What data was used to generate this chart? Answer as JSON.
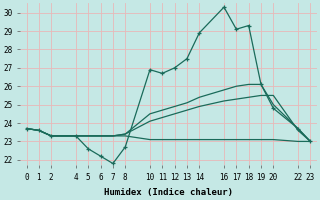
{
  "xlabel": "Humidex (Indice chaleur)",
  "bg_color": "#c5e8e5",
  "line_color": "#1a6b5a",
  "grid_color": "#e8b8b8",
  "xlim": [
    -0.5,
    23.5
  ],
  "ylim": [
    21.7,
    30.5
  ],
  "yticks": [
    22,
    23,
    24,
    25,
    26,
    27,
    28,
    29,
    30
  ],
  "xtick_labels": [
    "0",
    "1",
    "2",
    "4",
    "5",
    "6",
    "7",
    "8",
    "10",
    "11",
    "12",
    "13",
    "14",
    "16",
    "17",
    "18",
    "19",
    "20",
    "22",
    "23"
  ],
  "xtick_pos": [
    0,
    1,
    2,
    4,
    5,
    6,
    7,
    8,
    10,
    11,
    12,
    13,
    14,
    16,
    17,
    18,
    19,
    20,
    22,
    23
  ],
  "lines": [
    {
      "x": [
        0,
        1,
        2,
        4,
        5,
        6,
        7,
        8,
        10,
        11,
        12,
        13,
        14,
        16,
        17,
        18,
        19,
        20,
        22,
        23
      ],
      "y": [
        23.7,
        23.6,
        23.3,
        23.3,
        22.6,
        22.2,
        21.8,
        22.7,
        26.9,
        26.7,
        27.0,
        27.5,
        28.9,
        30.3,
        29.1,
        29.3,
        26.1,
        24.8,
        23.7,
        23.0
      ],
      "marker": "+"
    },
    {
      "x": [
        0,
        1,
        2,
        4,
        5,
        6,
        7,
        8,
        10,
        11,
        12,
        13,
        14,
        16,
        17,
        18,
        19,
        20,
        22,
        23
      ],
      "y": [
        23.7,
        23.6,
        23.3,
        23.3,
        23.3,
        23.3,
        23.3,
        23.4,
        24.5,
        24.7,
        24.9,
        25.1,
        25.4,
        25.8,
        26.0,
        26.1,
        26.1,
        25.0,
        23.7,
        23.0
      ],
      "marker": null
    },
    {
      "x": [
        0,
        1,
        2,
        4,
        5,
        6,
        7,
        8,
        10,
        11,
        12,
        13,
        14,
        16,
        17,
        18,
        19,
        20,
        22,
        23
      ],
      "y": [
        23.7,
        23.6,
        23.3,
        23.3,
        23.3,
        23.3,
        23.3,
        23.4,
        24.1,
        24.3,
        24.5,
        24.7,
        24.9,
        25.2,
        25.3,
        25.4,
        25.5,
        25.5,
        23.6,
        23.0
      ],
      "marker": null
    },
    {
      "x": [
        0,
        1,
        2,
        4,
        5,
        6,
        7,
        8,
        10,
        11,
        12,
        13,
        14,
        16,
        17,
        18,
        19,
        20,
        22,
        23
      ],
      "y": [
        23.7,
        23.6,
        23.3,
        23.3,
        23.3,
        23.3,
        23.3,
        23.3,
        23.1,
        23.1,
        23.1,
        23.1,
        23.1,
        23.1,
        23.1,
        23.1,
        23.1,
        23.1,
        23.0,
        23.0
      ],
      "marker": null
    }
  ]
}
